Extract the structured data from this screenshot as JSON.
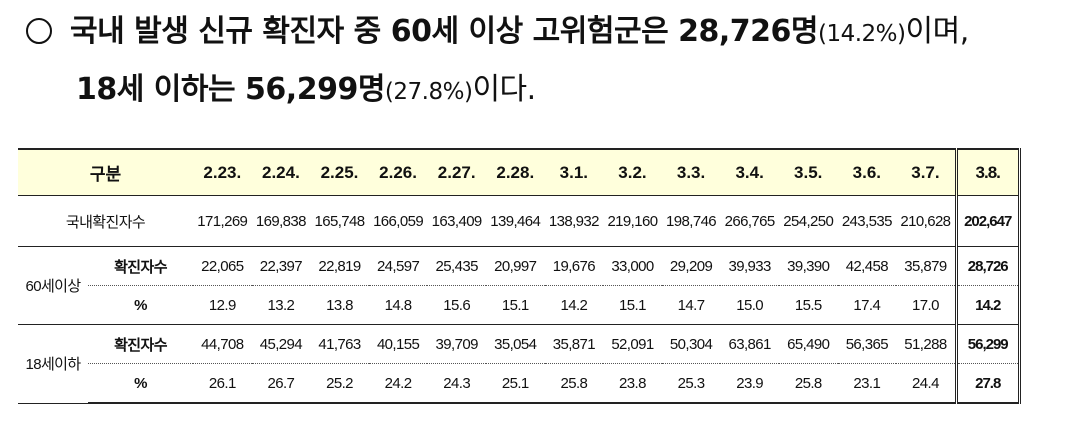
{
  "heading": {
    "l1_a": "국내 발생 신규 확진자 중 ",
    "l1_b": "60",
    "l1_c": "세 이상 고위험군은 ",
    "l1_d": "28,726명",
    "l1_e": "(14.2%)",
    "l1_f": "이며,",
    "l2_a": "18",
    "l2_b": "세 이하는 ",
    "l2_c": "56,299명",
    "l2_d": "(27.8%)",
    "l2_e": "이다."
  },
  "table": {
    "header_label": "구분",
    "dates": [
      "2.23.",
      "2.24.",
      "2.25.",
      "2.26.",
      "2.27.",
      "2.28.",
      "3.1.",
      "3.2.",
      "3.3.",
      "3.4.",
      "3.5.",
      "3.6.",
      "3.7."
    ],
    "last_date": "3.8.",
    "total_label": "국내확진자수",
    "total_values": [
      "171,269",
      "169,838",
      "165,748",
      "166,059",
      "163,409",
      "139,464",
      "138,932",
      "219,160",
      "198,746",
      "266,765",
      "254,250",
      "243,535",
      "210,628"
    ],
    "total_last": "202,647",
    "group_60_label": "60세이상",
    "group_18_label": "18세이하",
    "count_label": "확진자수",
    "pct_label": "%",
    "g60_counts": [
      "22,065",
      "22,397",
      "22,819",
      "24,597",
      "25,435",
      "20,997",
      "19,676",
      "33,000",
      "29,209",
      "39,933",
      "39,390",
      "42,458",
      "35,879"
    ],
    "g60_count_last": "28,726",
    "g60_pcts": [
      "12.9",
      "13.2",
      "13.8",
      "14.8",
      "15.6",
      "15.1",
      "14.2",
      "15.1",
      "14.7",
      "15.0",
      "15.5",
      "17.4",
      "17.0"
    ],
    "g60_pct_last": "14.2",
    "g18_counts": [
      "44,708",
      "45,294",
      "41,763",
      "40,155",
      "39,709",
      "35,054",
      "35,871",
      "52,091",
      "50,304",
      "63,861",
      "65,490",
      "56,365",
      "51,288"
    ],
    "g18_count_last": "56,299",
    "g18_pcts": [
      "26.1",
      "26.7",
      "25.2",
      "24.2",
      "24.3",
      "25.1",
      "25.8",
      "23.8",
      "25.3",
      "23.9",
      "25.8",
      "23.1",
      "24.4"
    ],
    "g18_pct_last": "27.8"
  }
}
